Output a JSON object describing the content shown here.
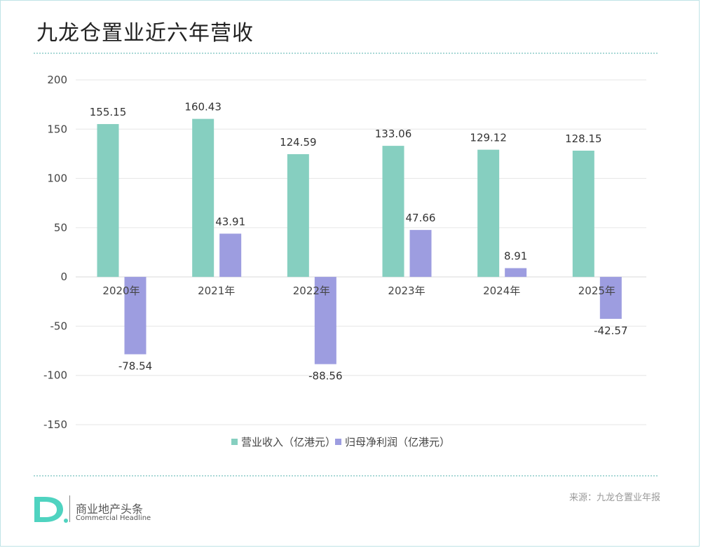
{
  "header": {
    "title": "九龙仓置业近六年营收"
  },
  "footer": {
    "logo_cn": "商业地产头条",
    "logo_en": "Commercial Headline",
    "logo_mark": "D.",
    "source": "来源：九龙仓置业年报"
  },
  "colors": {
    "revenue": "#86cfc0",
    "profit": "#9d9de0",
    "grid": "#e6e6e6",
    "frame": "#bfe3e6",
    "dotline": "#a9d8d6",
    "logo_teal": "#4fd3c0"
  },
  "chart_data": {
    "type": "bar",
    "title": "九龙仓置业近六年营收",
    "categories": [
      "2020年",
      "2021年",
      "2022年",
      "2023年",
      "2024年",
      "2025年"
    ],
    "series": [
      {
        "name": "营业收入（亿港元）",
        "values": [
          155.15,
          160.43,
          124.59,
          133.06,
          129.12,
          128.15
        ],
        "labels": [
          "155.15",
          "160.43",
          "124.59",
          "133.06",
          "129.12",
          "128.15"
        ]
      },
      {
        "name": "归母净利润（亿港元）",
        "values": [
          -78.54,
          43.91,
          -88.56,
          47.66,
          8.91,
          -42.57
        ],
        "labels": [
          "-78.54",
          "43.91",
          "-88.56",
          "47.66",
          "8.91",
          "-42.57"
        ]
      }
    ],
    "yticks": [
      "200",
      "150",
      "100",
      "50",
      "0",
      "-50",
      "-100",
      "-150"
    ],
    "ytick_values": [
      200,
      150,
      100,
      50,
      0,
      -50,
      -100,
      -150
    ],
    "ylim": [
      -150,
      200
    ],
    "grid": true,
    "legend": "bottom"
  }
}
